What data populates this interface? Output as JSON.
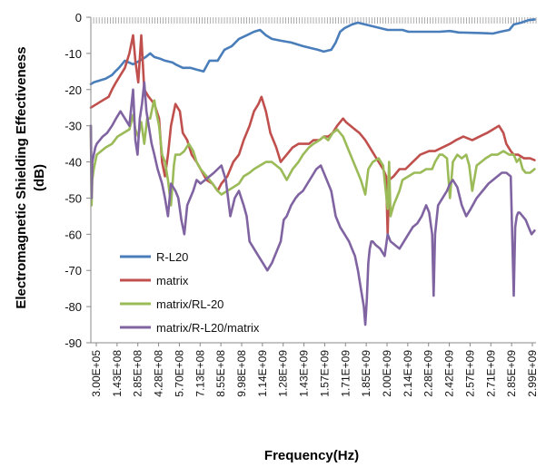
{
  "chart_data": {
    "type": "line",
    "title": "",
    "xlabel": "Frequency(Hz)",
    "ylabel_lines": [
      "Electromagnetic Shielding  Effectiveness",
      "(dB)"
    ],
    "ylim": [
      -90,
      0
    ],
    "yticks": [
      0,
      -10,
      -20,
      -30,
      -40,
      -50,
      -60,
      -70,
      -80,
      -90
    ],
    "xlim": [
      300000,
      3000000000
    ],
    "x_tick_labels": [
      "3.00E+05",
      "1.43E+08",
      "2.85E+08",
      "4.28E+08",
      "5.70E+08",
      "7.13E+08",
      "8.55E+08",
      "9.98E+08",
      "1.14E+09",
      "1.28E+09",
      "1.43E+09",
      "1.57E+09",
      "1.71E+09",
      "1.85E+09",
      "2.00E+09",
      "2.14E+09",
      "2.28E+09",
      "2.42E+09",
      "2.57E+09",
      "2.71E+09",
      "2.85E+09",
      "2.99E+09"
    ],
    "legend_position": "lower-left",
    "series": [
      {
        "name": "R-L20",
        "color": "#4a7ebb",
        "x": [
          0.3,
          20,
          60,
          100,
          143,
          165,
          190,
          230,
          285,
          330,
          370,
          400,
          428,
          470,
          500,
          550,
          570,
          620,
          670,
          713,
          760,
          800,
          855,
          900,
          950,
          998,
          1050,
          1100,
          1140,
          1180,
          1220,
          1280,
          1350,
          1430,
          1480,
          1530,
          1570,
          1620,
          1650,
          1680,
          1710,
          1760,
          1800,
          1850,
          1900,
          1950,
          2000,
          2050,
          2100,
          2140,
          2200,
          2280,
          2350,
          2420,
          2480,
          2570,
          2650,
          2710,
          2760,
          2820,
          2850,
          2900,
          2950,
          2990
        ],
        "y": [
          -18.5,
          -18,
          -17.5,
          -17,
          -16,
          -15,
          -14,
          -12,
          -13,
          -12,
          -11,
          -10,
          -11,
          -11.5,
          -12,
          -12.5,
          -13,
          -14,
          -14,
          -14.5,
          -15,
          -12,
          -12,
          -9,
          -8,
          -6,
          -5,
          -4,
          -3.5,
          -5,
          -6,
          -6.5,
          -7,
          -8,
          -8.5,
          -9,
          -9.5,
          -9,
          -7,
          -4,
          -3,
          -2,
          -1.5,
          -2,
          -2.5,
          -3,
          -3.5,
          -3.5,
          -3.5,
          -4,
          -4,
          -4,
          -4,
          -3.8,
          -4.2,
          -4.3,
          -4.4,
          -4.5,
          -4,
          -3.5,
          -2,
          -1.5,
          -0.8,
          -0.6
        ]
      },
      {
        "name": "matrix",
        "color": "#c0504d",
        "x": [
          0.3,
          40,
          80,
          120,
          143,
          170,
          200,
          230,
          260,
          285,
          300,
          320,
          340,
          360,
          390,
          428,
          460,
          480,
          500,
          520,
          540,
          570,
          600,
          620,
          650,
          680,
          713,
          740,
          780,
          820,
          855,
          880,
          920,
          960,
          998,
          1030,
          1070,
          1100,
          1130,
          1150,
          1180,
          1210,
          1250,
          1280,
          1320,
          1360,
          1400,
          1430,
          1470,
          1500,
          1540,
          1570,
          1600,
          1630,
          1660,
          1700,
          1720,
          1750,
          1780,
          1810,
          1850,
          1880,
          1910,
          1940,
          1970,
          1990,
          2000,
          2010,
          2040,
          2080,
          2120,
          2170,
          2220,
          2280,
          2320,
          2370,
          2420,
          2460,
          2510,
          2570,
          2620,
          2670,
          2710,
          2750,
          2780,
          2800,
          2830,
          2850,
          2880,
          2920,
          2960,
          2990
        ],
        "y": [
          -25,
          -24,
          -23,
          -22,
          -20,
          -18,
          -16,
          -14,
          -10,
          -5,
          -12,
          -18,
          -5,
          -20,
          -22,
          -24,
          -28,
          -40,
          -44,
          -38,
          -30,
          -24,
          -26,
          -32,
          -34,
          -38,
          -40,
          -42,
          -45,
          -46,
          -48,
          -46,
          -44,
          -40,
          -38,
          -34,
          -30,
          -26,
          -24,
          -22,
          -26,
          -32,
          -36,
          -40,
          -38,
          -36,
          -35,
          -35,
          -35,
          -34,
          -34,
          -33,
          -33,
          -32,
          -30,
          -28,
          -29,
          -30,
          -31,
          -32,
          -34,
          -36,
          -38,
          -40,
          -42,
          -44,
          -60,
          -45,
          -44,
          -42,
          -42,
          -40,
          -38,
          -37,
          -37,
          -36,
          -35,
          -34,
          -33,
          -34,
          -33,
          -32,
          -31,
          -30,
          -32,
          -35,
          -37,
          -38,
          -38,
          -39,
          -39,
          -39.5
        ]
      },
      {
        "name": "matrix/RL-20",
        "color": "#9bbb59",
        "x": [
          0.3,
          5,
          10,
          20,
          40,
          70,
          100,
          143,
          180,
          220,
          260,
          285,
          300,
          320,
          340,
          360,
          380,
          400,
          420,
          428,
          440,
          460,
          480,
          500,
          520,
          540,
          560,
          570,
          600,
          630,
          660,
          690,
          713,
          740,
          780,
          820,
          855,
          880,
          920,
          960,
          998,
          1030,
          1070,
          1100,
          1140,
          1180,
          1220,
          1280,
          1320,
          1360,
          1400,
          1430,
          1470,
          1500,
          1540,
          1570,
          1600,
          1630,
          1660,
          1700,
          1730,
          1760,
          1790,
          1820,
          1850,
          1870,
          1900,
          1940,
          1970,
          2000,
          2010,
          2020,
          2040,
          2060,
          2080,
          2100,
          2140,
          2180,
          2220,
          2260,
          2300,
          2320,
          2350,
          2370,
          2400,
          2420,
          2440,
          2470,
          2500,
          2530,
          2550,
          2570,
          2600,
          2630,
          2660,
          2700,
          2740,
          2780,
          2820,
          2850,
          2870,
          2890,
          2910,
          2930,
          2960,
          2990
        ],
        "y": [
          -30,
          -52,
          -45,
          -42,
          -38,
          -37,
          -36,
          -35,
          -33,
          -32,
          -31,
          -27,
          -31,
          -33,
          -29,
          -35,
          -28,
          -28,
          -24,
          -23,
          -26,
          -30,
          -38,
          -40,
          -45,
          -52,
          -41,
          -38,
          -38,
          -37,
          -35,
          -37,
          -40,
          -42,
          -44,
          -46,
          -48,
          -49,
          -48,
          -47,
          -46,
          -44,
          -43,
          -42,
          -41,
          -40,
          -40,
          -42,
          -45,
          -42,
          -40,
          -38,
          -36,
          -35,
          -34,
          -33,
          -34,
          -32,
          -31,
          -33,
          -36,
          -39,
          -42,
          -45,
          -49,
          -42,
          -40,
          -39,
          -41,
          -53,
          -40,
          -55,
          -52,
          -50,
          -48,
          -45,
          -44,
          -43,
          -43,
          -42,
          -42,
          -40,
          -38,
          -38,
          -39,
          -50,
          -40,
          -38,
          -39,
          -38,
          -41,
          -48,
          -41,
          -40,
          -39,
          -38,
          -38,
          -37,
          -38,
          -38,
          -40,
          -39,
          -42,
          -43,
          -43,
          -42
        ]
      },
      {
        "name": "matrix/R-L20/matrix",
        "color": "#8064a2",
        "x": [
          0.3,
          5,
          10,
          20,
          30,
          40,
          60,
          80,
          110,
          143,
          170,
          200,
          230,
          260,
          285,
          300,
          315,
          330,
          345,
          360,
          375,
          390,
          410,
          428,
          450,
          480,
          500,
          520,
          540,
          570,
          590,
          610,
          630,
          650,
          670,
          690,
          713,
          740,
          770,
          800,
          830,
          855,
          880,
          910,
          940,
          970,
          998,
          1030,
          1050,
          1070,
          1100,
          1130,
          1160,
          1190,
          1220,
          1250,
          1280,
          1300,
          1320,
          1350,
          1380,
          1400,
          1430,
          1460,
          1490,
          1520,
          1550,
          1570,
          1590,
          1620,
          1650,
          1680,
          1710,
          1740,
          1760,
          1780,
          1800,
          1820,
          1840,
          1850,
          1860,
          1870,
          1880,
          1890,
          1900,
          1920,
          1950,
          1980,
          2000,
          2020,
          2050,
          2080,
          2110,
          2140,
          2170,
          2200,
          2230,
          2260,
          2280,
          2300,
          2310,
          2320,
          2340,
          2370,
          2400,
          2420,
          2440,
          2470,
          2500,
          2530,
          2560,
          2600,
          2640,
          2680,
          2710,
          2740,
          2770,
          2800,
          2830,
          2850,
          2860,
          2870,
          2880,
          2890,
          2910,
          2930,
          2950,
          2970,
          2990
        ],
        "y": [
          -30,
          -50,
          -40,
          -38,
          -36,
          -35,
          -34,
          -33,
          -32,
          -30,
          -28,
          -26,
          -28,
          -30,
          -20,
          -34,
          -38,
          -28,
          -24,
          -18,
          -26,
          -30,
          -35,
          -38,
          -42,
          -46,
          -50,
          -55,
          -46,
          -48,
          -50,
          -56,
          -60,
          -52,
          -50,
          -48,
          -45,
          -46,
          -45,
          -44,
          -43,
          -42,
          -41,
          -45,
          -55,
          -50,
          -48,
          -52,
          -55,
          -62,
          -64,
          -66,
          -68,
          -70,
          -68,
          -65,
          -62,
          -56,
          -55,
          -52,
          -50,
          -49,
          -48,
          -46,
          -44,
          -42,
          -41,
          -43,
          -45,
          -48,
          -55,
          -58,
          -60,
          -62,
          -64,
          -66,
          -70,
          -75,
          -80,
          -85,
          -78,
          -68,
          -64,
          -62,
          -62,
          -63,
          -64,
          -66,
          -60,
          -62,
          -63,
          -64,
          -62,
          -60,
          -58,
          -57,
          -55,
          -52,
          -54,
          -60,
          -77,
          -60,
          -52,
          -50,
          -48,
          -46,
          -45,
          -47,
          -52,
          -55,
          -53,
          -50,
          -48,
          -46,
          -45,
          -44,
          -43,
          -43,
          -44,
          -77,
          -58,
          -55,
          -54,
          -54,
          -55,
          -56,
          -58,
          -60,
          -59
        ]
      }
    ]
  }
}
